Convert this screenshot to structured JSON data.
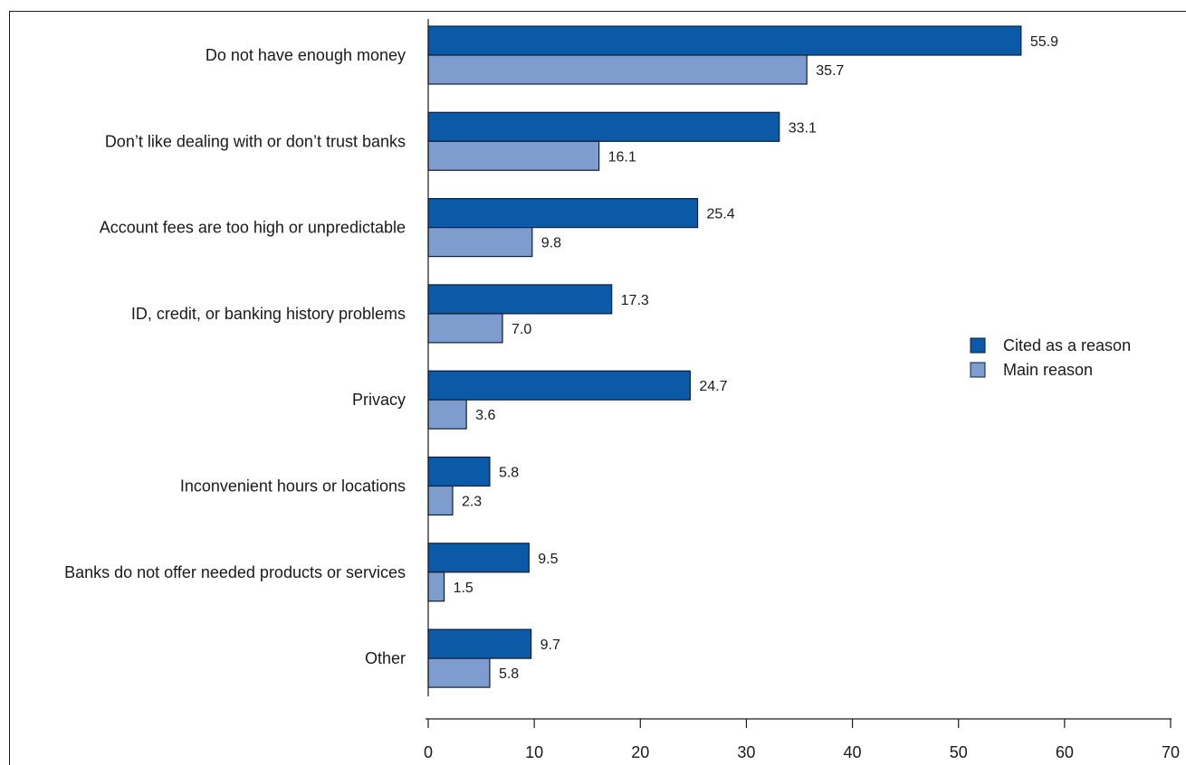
{
  "chart_data": {
    "type": "bar",
    "orientation": "horizontal",
    "categories": [
      "Do not have enough money",
      "Don’t like dealing with or don’t trust banks",
      "Account fees are too high or unpredictable",
      "ID, credit, or banking history problems",
      "Privacy",
      "Inconvenient hours or locations",
      "Banks do not offer needed products or services",
      "Other"
    ],
    "series": [
      {
        "name": "Cited as a reason",
        "color": "#0a5aa8",
        "values": [
          55.9,
          33.1,
          25.4,
          17.3,
          24.7,
          5.8,
          9.5,
          9.7
        ],
        "labels": [
          "55.9",
          "33.1",
          "25.4",
          "17.3",
          "24.7",
          "5.8",
          "9.5",
          "9.7"
        ]
      },
      {
        "name": "Main reason",
        "color": "#7f9ccf",
        "values": [
          35.7,
          16.1,
          9.8,
          7.0,
          3.6,
          2.3,
          1.5,
          5.8
        ],
        "labels": [
          "35.7",
          "16.1",
          "9.8",
          "7.0",
          "3.6",
          "2.3",
          "1.5",
          "5.8"
        ]
      }
    ],
    "xlim": [
      0,
      70
    ],
    "xticks": [
      "0",
      "10",
      "20",
      "30",
      "40",
      "50",
      "60",
      "70"
    ],
    "title": "",
    "xlabel": "",
    "ylabel": "",
    "legend_position": "right",
    "grid": false
  }
}
